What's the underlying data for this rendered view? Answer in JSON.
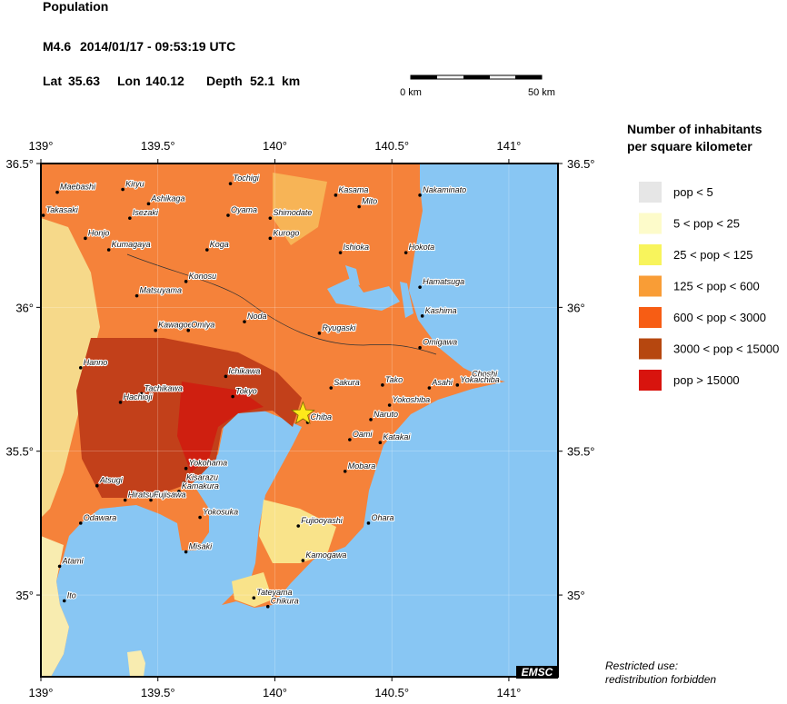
{
  "header": {
    "title": "Population",
    "magnitude": "M4.6",
    "datetime": "2014/01/17 - 09:53:19 UTC",
    "lat_label": "Lat",
    "lat": 35.63,
    "lon_label": "Lon",
    "lon": 140.12,
    "depth_label": "Depth",
    "depth": 52.1,
    "depth_unit": "km"
  },
  "scale_bar": {
    "labels": [
      "0 km",
      "50 km"
    ]
  },
  "map": {
    "lon_range": [
      139,
      141.21
    ],
    "lat_range": [
      34.716,
      36.5
    ],
    "xticks": [
      {
        "value": 139,
        "label": "139°"
      },
      {
        "value": 139.5,
        "label": "139.5°"
      },
      {
        "value": 140,
        "label": "140°"
      },
      {
        "value": 140.5,
        "label": "140.5°"
      },
      {
        "value": 141,
        "label": "141°"
      }
    ],
    "yticks": [
      {
        "value": 35,
        "label": "35°"
      },
      {
        "value": 35.5,
        "label": "35.5°"
      },
      {
        "value": 36,
        "label": "36°"
      },
      {
        "value": 36.5,
        "label": "36.5°"
      }
    ],
    "epicenter_color": "#ffe81a",
    "cities": [
      {
        "name": "Maebashi",
        "lon": 139.07,
        "lat": 36.4
      },
      {
        "name": "Kiryu",
        "lon": 139.35,
        "lat": 36.41
      },
      {
        "name": "Takasaki",
        "lon": 139.01,
        "lat": 36.32
      },
      {
        "name": "Ashikaga",
        "lon": 139.46,
        "lat": 36.36
      },
      {
        "name": "Tochigi",
        "lon": 139.81,
        "lat": 36.43
      },
      {
        "name": "Kasama",
        "lon": 140.26,
        "lat": 36.39
      },
      {
        "name": "Mito",
        "lon": 140.36,
        "lat": 36.35
      },
      {
        "name": "Nakaminato",
        "lon": 140.62,
        "lat": 36.39
      },
      {
        "name": "Isezaki",
        "lon": 139.38,
        "lat": 36.31
      },
      {
        "name": "Oyama",
        "lon": 139.8,
        "lat": 36.32
      },
      {
        "name": "Shimodate",
        "lon": 139.98,
        "lat": 36.31
      },
      {
        "name": "Honjo",
        "lon": 139.19,
        "lat": 36.24
      },
      {
        "name": "Kurogo",
        "lon": 139.98,
        "lat": 36.24
      },
      {
        "name": "Kumagaya",
        "lon": 139.29,
        "lat": 36.2
      },
      {
        "name": "Koga",
        "lon": 139.71,
        "lat": 36.2
      },
      {
        "name": "Ishioka",
        "lon": 140.28,
        "lat": 36.19
      },
      {
        "name": "Hokota",
        "lon": 140.56,
        "lat": 36.19
      },
      {
        "name": "Konosu",
        "lon": 139.62,
        "lat": 36.09
      },
      {
        "name": "Hamatsuga",
        "lon": 140.62,
        "lat": 36.07
      },
      {
        "name": "Matsuyama",
        "lon": 139.41,
        "lat": 36.04
      },
      {
        "name": "Kashima",
        "lon": 140.63,
        "lat": 35.97
      },
      {
        "name": "Noda",
        "lon": 139.87,
        "lat": 35.95
      },
      {
        "name": "Kawagoe",
        "lon": 139.49,
        "lat": 35.92
      },
      {
        "name": "Omiya",
        "lon": 139.63,
        "lat": 35.92
      },
      {
        "name": "Ryugaski",
        "lon": 140.19,
        "lat": 35.91
      },
      {
        "name": "Omigawa",
        "lon": 140.62,
        "lat": 35.86
      },
      {
        "name": "Hanno",
        "lon": 139.17,
        "lat": 35.79
      },
      {
        "name": "Ichikawa",
        "lon": 139.79,
        "lat": 35.76
      },
      {
        "name": "Choshi",
        "lon": 140.83,
        "lat": 35.75
      },
      {
        "name": "Tachikawa",
        "lon": 139.43,
        "lat": 35.7
      },
      {
        "name": "Tako",
        "lon": 140.46,
        "lat": 35.73
      },
      {
        "name": "Sakura",
        "lon": 140.24,
        "lat": 35.72
      },
      {
        "name": "Asahi",
        "lon": 140.66,
        "lat": 35.72
      },
      {
        "name": "Yokaichiba",
        "lon": 140.78,
        "lat": 35.73
      },
      {
        "name": "Tokyo",
        "lon": 139.82,
        "lat": 35.69
      },
      {
        "name": "Hachioji",
        "lon": 139.34,
        "lat": 35.67
      },
      {
        "name": "Yokoshiba",
        "lon": 140.49,
        "lat": 35.66
      },
      {
        "name": "Chiba",
        "lon": 140.14,
        "lat": 35.6
      },
      {
        "name": "Naruto",
        "lon": 140.41,
        "lat": 35.61
      },
      {
        "name": "Oami",
        "lon": 140.32,
        "lat": 35.54
      },
      {
        "name": "Katakai",
        "lon": 140.45,
        "lat": 35.53
      },
      {
        "name": "Yokohama",
        "lon": 139.62,
        "lat": 35.44
      },
      {
        "name": "Mobara",
        "lon": 140.3,
        "lat": 35.43
      },
      {
        "name": "Kisarazu",
        "lon": 139.61,
        "lat": 35.39
      },
      {
        "name": "Atsugi",
        "lon": 139.24,
        "lat": 35.38
      },
      {
        "name": "Kamakura",
        "lon": 139.59,
        "lat": 35.36
      },
      {
        "name": "Hiratsuka",
        "lon": 139.36,
        "lat": 35.33
      },
      {
        "name": "Fujisawa",
        "lon": 139.47,
        "lat": 35.33
      },
      {
        "name": "Odawara",
        "lon": 139.17,
        "lat": 35.25
      },
      {
        "name": "Yokosuka",
        "lon": 139.68,
        "lat": 35.27
      },
      {
        "name": "Fujiooyashi",
        "lon": 140.1,
        "lat": 35.24
      },
      {
        "name": "Ohara",
        "lon": 140.4,
        "lat": 35.25
      },
      {
        "name": "Misaki",
        "lon": 139.62,
        "lat": 35.15
      },
      {
        "name": "Atami",
        "lon": 139.08,
        "lat": 35.1
      },
      {
        "name": "Kamogawa",
        "lon": 140.12,
        "lat": 35.12
      },
      {
        "name": "Ito",
        "lon": 139.1,
        "lat": 34.98
      },
      {
        "name": "Tateyama",
        "lon": 139.91,
        "lat": 34.99
      },
      {
        "name": "Chikura",
        "lon": 139.97,
        "lat": 34.96
      }
    ]
  },
  "legend": {
    "title": [
      "Number of inhabitants",
      "per square kilometer"
    ],
    "entries": [
      {
        "label": "pop < 5",
        "color": "#e6e6e6"
      },
      {
        "label": "5 < pop < 25",
        "color": "#fdfbca"
      },
      {
        "label": "25 < pop < 125",
        "color": "#f8f45c"
      },
      {
        "label": "125 < pop < 600",
        "color": "#f99d36"
      },
      {
        "label": "600 < pop < 3000",
        "color": "#f75d14"
      },
      {
        "label": "3000 < pop < 15000",
        "color": "#b6470f"
      },
      {
        "label": "pop > 15000",
        "color": "#d8140e"
      }
    ]
  },
  "logo": "EMSC",
  "footer": [
    "Restricted use:",
    "redistribution forbidden"
  ]
}
